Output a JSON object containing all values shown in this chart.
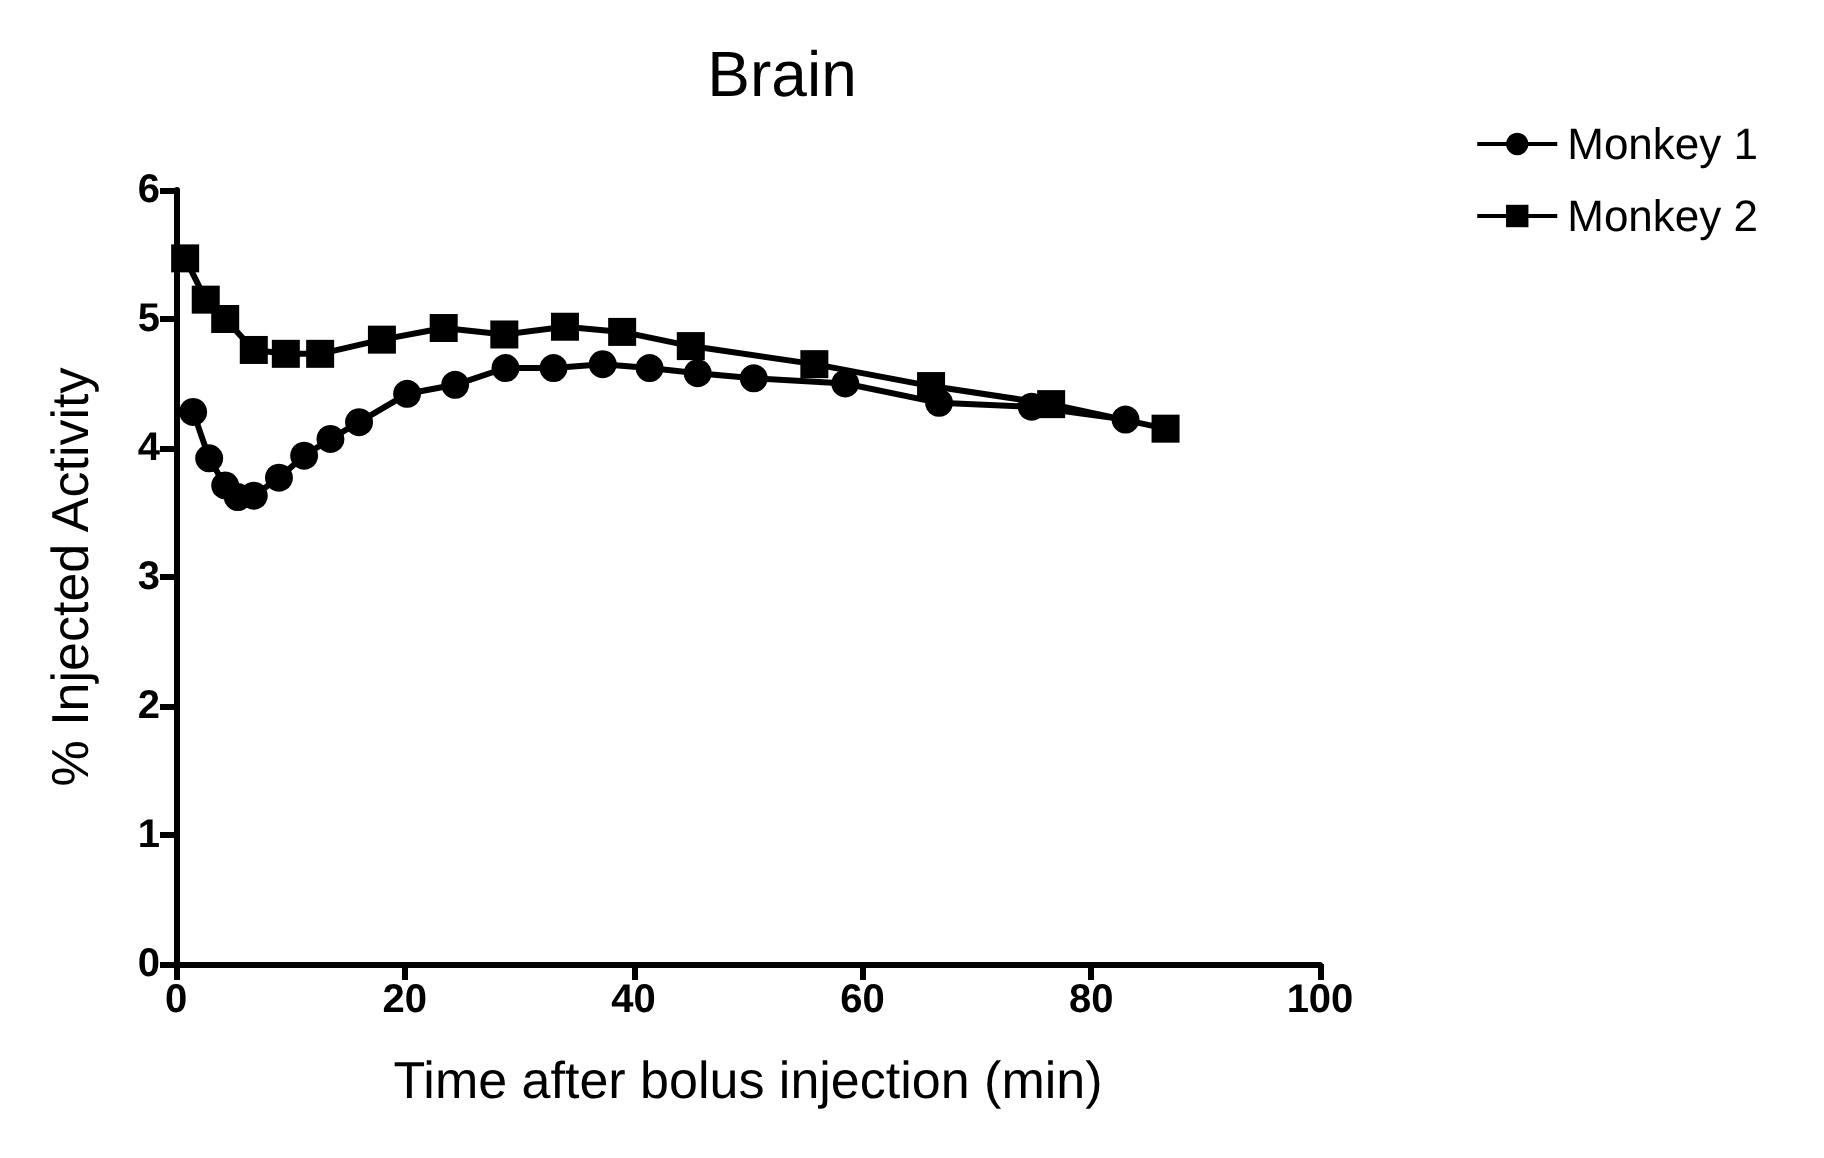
{
  "chart_data": {
    "type": "line",
    "title": "Brain",
    "xlabel": "Time after bolus injection (min)",
    "ylabel": "% Injected Activity",
    "xlim": [
      0,
      100
    ],
    "xticks": [
      0,
      20,
      40,
      60,
      80,
      100
    ],
    "ylim": [
      0,
      6
    ],
    "yticks": [
      0,
      1,
      2,
      3,
      4,
      5,
      6
    ],
    "grid": false,
    "legend": "right",
    "line_style": "solid",
    "series": [
      {
        "name": "Monkey 1",
        "color": "#000000",
        "marker": "circle",
        "x": [
          1.5,
          2.9,
          4.3,
          5.4,
          6.8,
          9.0,
          11.2,
          13.5,
          16,
          20.2,
          24.4,
          28.8,
          33,
          37.3,
          41.4,
          45.6,
          50.5,
          58.5,
          66.7,
          74.8,
          83
        ],
        "values": [
          4.28,
          3.92,
          3.71,
          3.62,
          3.63,
          3.77,
          3.94,
          4.07,
          4.2,
          4.42,
          4.49,
          4.62,
          4.62,
          4.65,
          4.62,
          4.58,
          4.54,
          4.5,
          4.35,
          4.32,
          4.22
        ]
      },
      {
        "name": "Monkey 2",
        "color": "#000000",
        "marker": "square",
        "x": [
          0.8,
          2.6,
          4.3,
          6.8,
          9.6,
          12.6,
          18,
          23.4,
          28.7,
          34,
          39,
          45,
          55.8,
          66,
          76.5,
          86.5
        ],
        "values": [
          5.47,
          5.15,
          5.0,
          4.76,
          4.73,
          4.73,
          4.84,
          4.93,
          4.88,
          4.94,
          4.9,
          4.79,
          4.65,
          4.48,
          4.34,
          4.15
        ]
      }
    ]
  }
}
